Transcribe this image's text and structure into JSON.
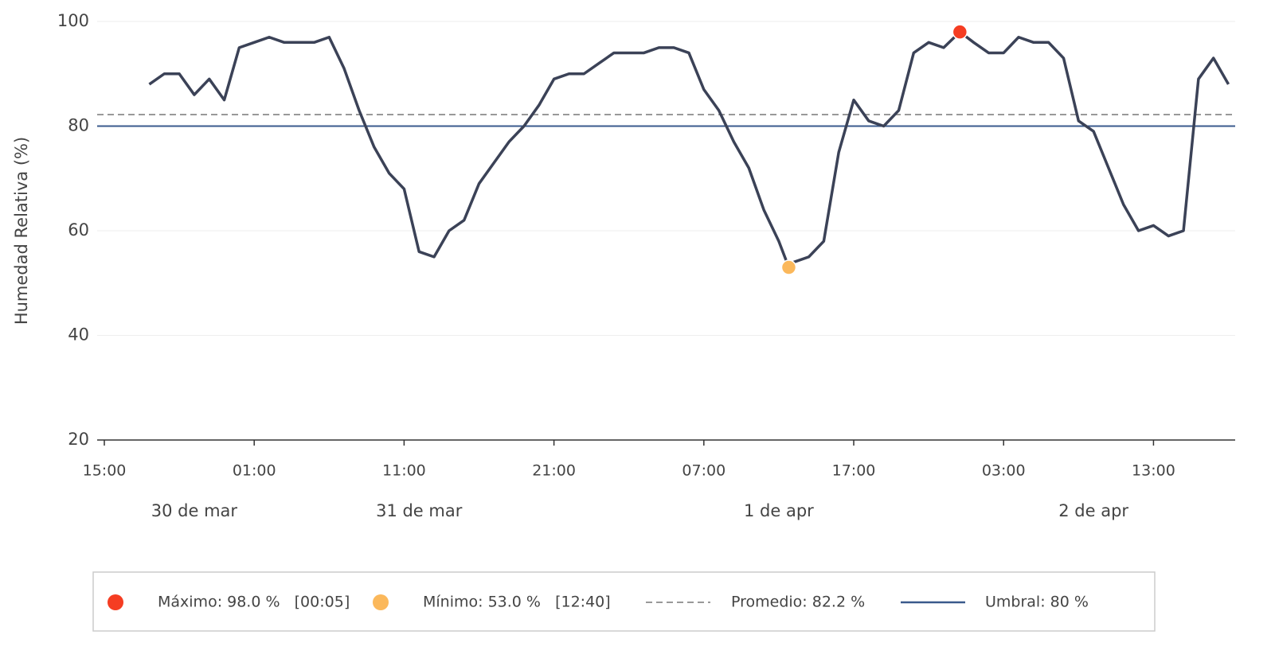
{
  "chart_data": {
    "type": "line",
    "y_label": "Humedad Relativa (%)",
    "x": [
      "03-30 18:00",
      "03-30 19:00",
      "03-30 20:00",
      "03-30 21:00",
      "03-30 22:00",
      "03-30 23:00",
      "03-31 00:00",
      "03-31 01:00",
      "03-31 02:00",
      "03-31 03:00",
      "03-31 04:00",
      "03-31 05:00",
      "03-31 06:00",
      "03-31 07:00",
      "03-31 08:00",
      "03-31 09:00",
      "03-31 10:00",
      "03-31 11:00",
      "03-31 12:00",
      "03-31 13:00",
      "03-31 14:00",
      "03-31 15:00",
      "03-31 16:00",
      "03-31 17:00",
      "03-31 18:00",
      "03-31 19:00",
      "03-31 20:00",
      "03-31 21:00",
      "03-31 22:00",
      "03-31 23:00",
      "04-01 00:00",
      "04-01 01:00",
      "04-01 02:00",
      "04-01 03:00",
      "04-01 04:00",
      "04-01 05:00",
      "04-01 06:00",
      "04-01 07:00",
      "04-01 08:00",
      "04-01 09:00",
      "04-01 10:00",
      "04-01 11:00",
      "04-01 12:00",
      "04-01 12:40",
      "04-01 13:00",
      "04-01 14:00",
      "04-01 15:00",
      "04-01 16:00",
      "04-01 17:00",
      "04-01 18:00",
      "04-01 19:00",
      "04-01 20:00",
      "04-01 21:00",
      "04-01 22:00",
      "04-01 23:00",
      "04-02 00:05",
      "04-02 01:00",
      "04-02 02:00",
      "04-02 03:00",
      "04-02 04:00",
      "04-02 05:00",
      "04-02 06:00",
      "04-02 07:00",
      "04-02 08:00",
      "04-02 09:00",
      "04-02 10:00",
      "04-02 11:00",
      "04-02 12:00",
      "04-02 13:00",
      "04-02 14:00",
      "04-02 15:00",
      "04-02 16:00",
      "04-02 17:00",
      "04-02 18:00"
    ],
    "series": [
      {
        "name": "Humedad Relativa",
        "color": "#3b4257",
        "values": [
          88,
          90,
          90,
          86,
          89,
          85,
          95,
          96,
          97,
          96,
          96,
          96,
          97,
          91,
          83,
          76,
          71,
          68,
          56,
          55,
          60,
          62,
          69,
          73,
          77,
          80,
          84,
          89,
          90,
          90,
          92,
          94,
          94,
          94,
          95,
          95,
          94,
          87,
          83,
          77,
          72,
          64,
          58,
          53,
          54,
          55,
          58,
          75,
          85,
          81,
          80,
          83,
          94,
          96,
          95,
          98,
          96,
          94,
          94,
          97,
          96,
          96,
          93,
          81,
          79,
          72,
          65,
          60,
          61,
          59,
          60,
          89,
          93,
          88
        ]
      }
    ],
    "max": {
      "x": "04-02 00:05",
      "value": 98.0,
      "color": "#f53d22",
      "label": "Máximo: 98.0 %   [00:05]"
    },
    "min": {
      "x": "04-01 12:40",
      "value": 53.0,
      "color": "#fbb85b",
      "label": "Mínimo: 53.0 %   [12:40]"
    },
    "mean": {
      "value": 82.2,
      "color": "#999999",
      "label": "Promedio: 82.2 %"
    },
    "threshold": {
      "value": 80,
      "color": "#3a5a8c",
      "label": "Umbral: 80 %"
    },
    "xlim": [
      "03-30 15:00",
      "04-02 18:27"
    ],
    "xticks": [
      {
        "value": "03-30 15:00",
        "label": "15:00"
      },
      {
        "value": "03-31 01:00",
        "label": "01:00"
      },
      {
        "value": "03-31 11:00",
        "label": "11:00"
      },
      {
        "value": "03-31 21:00",
        "label": "21:00"
      },
      {
        "value": "04-01 07:00",
        "label": "07:00"
      },
      {
        "value": "04-01 17:00",
        "label": "17:00"
      },
      {
        "value": "04-02 03:00",
        "label": "03:00"
      },
      {
        "value": "04-02 13:00",
        "label": "13:00"
      }
    ],
    "day_labels": [
      {
        "value": "03-30 21:00",
        "label": "30 de mar"
      },
      {
        "value": "03-31 12:00",
        "label": "31 de mar"
      },
      {
        "value": "04-01 12:00",
        "label": "1 de apr"
      },
      {
        "value": "04-02 09:00",
        "label": "2 de apr"
      }
    ],
    "ylim": [
      20,
      100
    ],
    "yticks": [
      20,
      40,
      60,
      80,
      100
    ],
    "grid": true
  }
}
